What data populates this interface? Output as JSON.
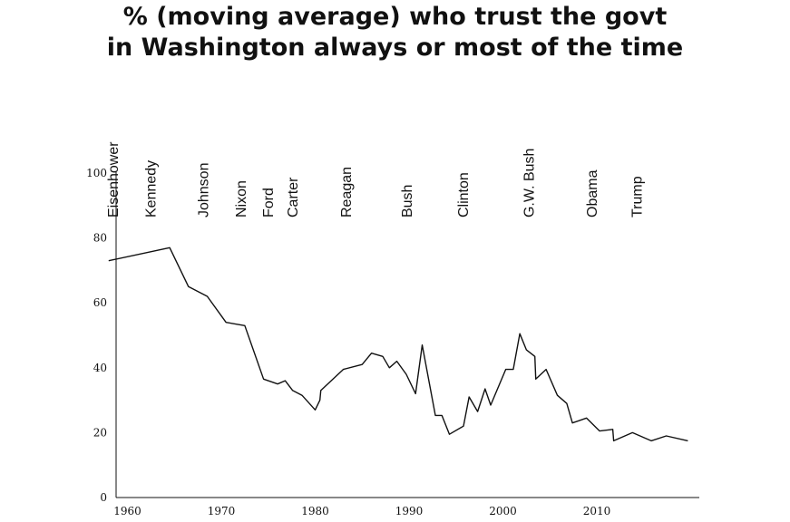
{
  "chart_data": {
    "type": "line",
    "title": "% (moving average) who trust the govt",
    "subtitle": "in Washington always or most of the time",
    "xlabel": "",
    "ylabel": "",
    "xlim": [
      1958,
      2019
    ],
    "ylim": [
      0,
      100
    ],
    "x_ticks": [
      1960,
      1970,
      1980,
      1990,
      2000,
      2010
    ],
    "y_ticks": [
      0,
      20,
      40,
      60,
      80,
      100
    ],
    "grid": false,
    "legend": "none",
    "line_color": "#111111",
    "series": [
      {
        "points": [
          [
            1958,
            73
          ],
          [
            1964.5,
            77
          ],
          [
            1966.5,
            65
          ],
          [
            1968.5,
            62
          ],
          [
            1970.5,
            54
          ],
          [
            1972.5,
            53
          ],
          [
            1974.5,
            36.5
          ],
          [
            1976,
            35
          ],
          [
            1976.8,
            36
          ],
          [
            1977.6,
            33
          ],
          [
            1978.6,
            31.5
          ],
          [
            1980,
            27
          ],
          [
            1980.5,
            30
          ],
          [
            1980.6,
            33
          ],
          [
            1983,
            39.5
          ],
          [
            1985,
            41
          ],
          [
            1986,
            44.5
          ],
          [
            1987.2,
            43.5
          ],
          [
            1987.9,
            40
          ],
          [
            1988.7,
            42
          ],
          [
            1989.7,
            38
          ],
          [
            1990.7,
            32
          ],
          [
            1991.4,
            47
          ],
          [
            1992.8,
            25.3
          ],
          [
            1993.5,
            25.3
          ],
          [
            1994.3,
            19.5
          ],
          [
            1995.8,
            22
          ],
          [
            1996.4,
            31
          ],
          [
            1997.3,
            26.5
          ],
          [
            1998.1,
            33.5
          ],
          [
            1998.7,
            28.5
          ],
          [
            2000.3,
            39.5
          ],
          [
            2001.1,
            39.5
          ],
          [
            2001.8,
            50.5
          ],
          [
            2002.5,
            45.5
          ],
          [
            2003.4,
            43.5
          ],
          [
            2003.5,
            36.5
          ],
          [
            2004.6,
            39.5
          ],
          [
            2005.8,
            31.5
          ],
          [
            2006.8,
            29
          ],
          [
            2007.4,
            23
          ],
          [
            2008.9,
            24.5
          ],
          [
            2010.3,
            20.5
          ],
          [
            2011.7,
            21
          ],
          [
            2011.8,
            17.5
          ],
          [
            2013.8,
            20
          ],
          [
            2015.8,
            17.5
          ],
          [
            2017.4,
            19
          ],
          [
            2019.7,
            17.5
          ]
        ]
      }
    ],
    "annotations": [
      {
        "text": "Eisenhower",
        "x": 1959
      },
      {
        "text": "Kennedy",
        "x": 1963
      },
      {
        "text": "Johnson",
        "x": 1968.6
      },
      {
        "text": "Nixon",
        "x": 1972.6
      },
      {
        "text": "Ford",
        "x": 1975.5
      },
      {
        "text": "Carter",
        "x": 1978.1
      },
      {
        "text": "Reagan",
        "x": 1983.8
      },
      {
        "text": "Bush",
        "x": 1990.3
      },
      {
        "text": "Clinton",
        "x": 1996.3
      },
      {
        "text": "G.W. Bush",
        "x": 2003.3
      },
      {
        "text": "Obama",
        "x": 2010
      },
      {
        "text": "Trump",
        "x": 2014.8
      }
    ]
  }
}
